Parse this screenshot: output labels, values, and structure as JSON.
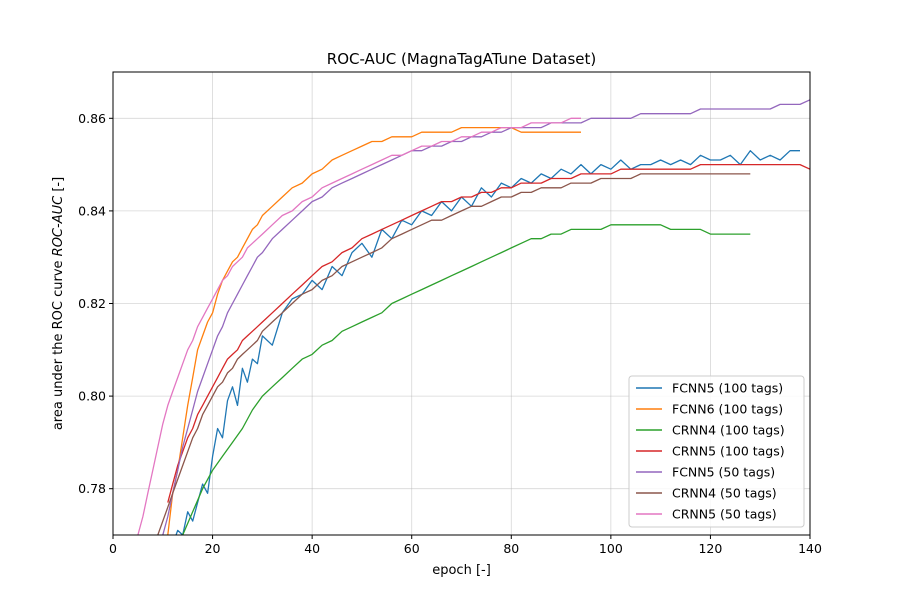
{
  "chart_data": {
    "type": "line",
    "title": "ROC-AUC (MagnaTagATune Dataset)",
    "xlabel": "epoch [-]",
    "ylabel_prefix": "area under the ROC curve ",
    "ylabel_italic": "ROC-AUC",
    "ylabel_suffix": " [-]",
    "xlim": [
      0,
      140
    ],
    "ylim": [
      0.77,
      0.87
    ],
    "xticks": [
      0,
      20,
      40,
      60,
      80,
      100,
      120,
      140
    ],
    "xtick_labels": [
      "0",
      "20",
      "40",
      "60",
      "80",
      "100",
      "120",
      "140"
    ],
    "yticks": [
      0.78,
      0.8,
      0.82,
      0.84,
      0.86
    ],
    "ytick_labels": [
      "0.78",
      "0.80",
      "0.82",
      "0.84",
      "0.86"
    ],
    "grid": true,
    "legend_position": "lower-right",
    "series": [
      {
        "name": "FCNN5 (100 tags)",
        "color": "#1f77b4",
        "x": [
          11,
          12,
          13,
          14,
          15,
          16,
          17,
          18,
          19,
          20,
          21,
          22,
          23,
          24,
          25,
          26,
          27,
          28,
          29,
          30,
          32,
          34,
          36,
          38,
          40,
          42,
          44,
          46,
          48,
          50,
          52,
          54,
          56,
          58,
          60,
          62,
          64,
          66,
          68,
          70,
          72,
          74,
          76,
          78,
          80,
          82,
          84,
          86,
          88,
          90,
          92,
          94,
          96,
          98,
          100,
          102,
          104,
          106,
          108,
          110,
          112,
          114,
          116,
          118,
          120,
          122,
          124,
          126,
          128,
          130,
          132,
          134,
          136,
          138
        ],
        "values": [
          0.766,
          0.768,
          0.771,
          0.77,
          0.775,
          0.773,
          0.777,
          0.781,
          0.779,
          0.787,
          0.793,
          0.791,
          0.799,
          0.802,
          0.798,
          0.806,
          0.803,
          0.808,
          0.807,
          0.813,
          0.811,
          0.818,
          0.821,
          0.822,
          0.825,
          0.823,
          0.828,
          0.826,
          0.831,
          0.833,
          0.83,
          0.836,
          0.834,
          0.838,
          0.837,
          0.84,
          0.839,
          0.842,
          0.84,
          0.843,
          0.841,
          0.845,
          0.843,
          0.846,
          0.845,
          0.847,
          0.846,
          0.848,
          0.847,
          0.849,
          0.848,
          0.85,
          0.848,
          0.85,
          0.849,
          0.851,
          0.849,
          0.85,
          0.85,
          0.851,
          0.85,
          0.851,
          0.85,
          0.852,
          0.851,
          0.851,
          0.852,
          0.85,
          0.853,
          0.851,
          0.852,
          0.851,
          0.853,
          0.853
        ]
      },
      {
        "name": "FCNN6 (100 tags)",
        "color": "#ff7f0e",
        "x": [
          11,
          12,
          13,
          14,
          15,
          16,
          17,
          18,
          19,
          20,
          21,
          22,
          23,
          24,
          25,
          26,
          27,
          28,
          29,
          30,
          32,
          34,
          36,
          38,
          40,
          42,
          44,
          46,
          48,
          50,
          52,
          54,
          56,
          58,
          60,
          62,
          64,
          66,
          68,
          70,
          72,
          74,
          76,
          78,
          80,
          82,
          84,
          86,
          88,
          90,
          92,
          94
        ],
        "values": [
          0.77,
          0.779,
          0.784,
          0.791,
          0.798,
          0.804,
          0.81,
          0.813,
          0.816,
          0.818,
          0.822,
          0.825,
          0.827,
          0.829,
          0.83,
          0.832,
          0.834,
          0.836,
          0.837,
          0.839,
          0.841,
          0.843,
          0.845,
          0.846,
          0.848,
          0.849,
          0.851,
          0.852,
          0.853,
          0.854,
          0.855,
          0.855,
          0.856,
          0.856,
          0.856,
          0.857,
          0.857,
          0.857,
          0.857,
          0.858,
          0.858,
          0.858,
          0.858,
          0.858,
          0.858,
          0.857,
          0.857,
          0.857,
          0.857,
          0.857,
          0.857,
          0.857
        ]
      },
      {
        "name": "CRNN4 (100 tags)",
        "color": "#2ca02c",
        "x": [
          14,
          16,
          18,
          20,
          22,
          24,
          26,
          28,
          30,
          32,
          34,
          36,
          38,
          40,
          42,
          44,
          46,
          48,
          50,
          52,
          54,
          56,
          58,
          60,
          62,
          64,
          66,
          68,
          70,
          72,
          74,
          76,
          78,
          80,
          82,
          84,
          86,
          88,
          90,
          92,
          94,
          96,
          98,
          100,
          102,
          104,
          106,
          108,
          110,
          112,
          114,
          116,
          118,
          120,
          122,
          124,
          126,
          128
        ],
        "values": [
          0.77,
          0.775,
          0.78,
          0.784,
          0.787,
          0.79,
          0.793,
          0.797,
          0.8,
          0.802,
          0.804,
          0.806,
          0.808,
          0.809,
          0.811,
          0.812,
          0.814,
          0.815,
          0.816,
          0.817,
          0.818,
          0.82,
          0.821,
          0.822,
          0.823,
          0.824,
          0.825,
          0.826,
          0.827,
          0.828,
          0.829,
          0.83,
          0.831,
          0.832,
          0.833,
          0.834,
          0.834,
          0.835,
          0.835,
          0.836,
          0.836,
          0.836,
          0.836,
          0.837,
          0.837,
          0.837,
          0.837,
          0.837,
          0.837,
          0.836,
          0.836,
          0.836,
          0.836,
          0.835,
          0.835,
          0.835,
          0.835,
          0.835
        ]
      },
      {
        "name": "CRNN5 (100 tags)",
        "color": "#d62728",
        "x": [
          11,
          12,
          13,
          14,
          15,
          16,
          17,
          18,
          19,
          20,
          21,
          22,
          23,
          24,
          25,
          26,
          27,
          28,
          29,
          30,
          32,
          34,
          36,
          38,
          40,
          42,
          44,
          46,
          48,
          50,
          52,
          54,
          56,
          58,
          60,
          62,
          64,
          66,
          68,
          70,
          72,
          74,
          76,
          78,
          80,
          82,
          84,
          86,
          88,
          90,
          92,
          94,
          96,
          98,
          100,
          102,
          104,
          106,
          108,
          110,
          112,
          114,
          116,
          118,
          120,
          122,
          124,
          126,
          128,
          130,
          132,
          134,
          136,
          138,
          140
        ],
        "values": [
          0.777,
          0.781,
          0.785,
          0.788,
          0.791,
          0.793,
          0.796,
          0.798,
          0.8,
          0.802,
          0.804,
          0.806,
          0.808,
          0.809,
          0.81,
          0.812,
          0.813,
          0.814,
          0.815,
          0.816,
          0.818,
          0.82,
          0.822,
          0.824,
          0.826,
          0.828,
          0.829,
          0.831,
          0.832,
          0.834,
          0.835,
          0.836,
          0.837,
          0.838,
          0.839,
          0.84,
          0.841,
          0.842,
          0.842,
          0.843,
          0.843,
          0.844,
          0.844,
          0.845,
          0.845,
          0.846,
          0.846,
          0.846,
          0.847,
          0.847,
          0.847,
          0.848,
          0.848,
          0.848,
          0.848,
          0.849,
          0.849,
          0.849,
          0.849,
          0.849,
          0.849,
          0.849,
          0.849,
          0.85,
          0.85,
          0.85,
          0.85,
          0.85,
          0.85,
          0.85,
          0.85,
          0.85,
          0.85,
          0.85,
          0.849
        ]
      },
      {
        "name": "FCNN5 (50 tags)",
        "color": "#9467bd",
        "x": [
          10,
          11,
          12,
          13,
          14,
          15,
          16,
          17,
          18,
          19,
          20,
          21,
          22,
          23,
          24,
          25,
          26,
          27,
          28,
          29,
          30,
          32,
          34,
          36,
          38,
          40,
          42,
          44,
          46,
          48,
          50,
          52,
          54,
          56,
          58,
          60,
          62,
          64,
          66,
          68,
          70,
          72,
          74,
          76,
          78,
          80,
          82,
          84,
          86,
          88,
          90,
          92,
          94,
          96,
          98,
          100,
          102,
          104,
          106,
          108,
          110,
          112,
          114,
          116,
          118,
          120,
          122,
          124,
          126,
          128,
          130,
          132,
          134,
          136,
          138,
          140
        ],
        "values": [
          0.77,
          0.774,
          0.779,
          0.784,
          0.789,
          0.793,
          0.797,
          0.801,
          0.804,
          0.807,
          0.81,
          0.813,
          0.815,
          0.818,
          0.82,
          0.822,
          0.824,
          0.826,
          0.828,
          0.83,
          0.831,
          0.834,
          0.836,
          0.838,
          0.84,
          0.842,
          0.843,
          0.845,
          0.846,
          0.847,
          0.848,
          0.849,
          0.85,
          0.851,
          0.852,
          0.853,
          0.853,
          0.854,
          0.854,
          0.855,
          0.855,
          0.856,
          0.856,
          0.857,
          0.857,
          0.858,
          0.858,
          0.858,
          0.858,
          0.859,
          0.859,
          0.859,
          0.859,
          0.86,
          0.86,
          0.86,
          0.86,
          0.86,
          0.861,
          0.861,
          0.861,
          0.861,
          0.861,
          0.861,
          0.862,
          0.862,
          0.862,
          0.862,
          0.862,
          0.862,
          0.862,
          0.862,
          0.863,
          0.863,
          0.863,
          0.864
        ]
      },
      {
        "name": "CRNN4 (50 tags)",
        "color": "#8c564b",
        "x": [
          9,
          10,
          11,
          12,
          13,
          14,
          15,
          16,
          17,
          18,
          19,
          20,
          21,
          22,
          23,
          24,
          25,
          26,
          27,
          28,
          29,
          30,
          32,
          34,
          36,
          38,
          40,
          42,
          44,
          46,
          48,
          50,
          52,
          54,
          56,
          58,
          60,
          62,
          64,
          66,
          68,
          70,
          72,
          74,
          76,
          78,
          80,
          82,
          84,
          86,
          88,
          90,
          92,
          94,
          96,
          98,
          100,
          102,
          104,
          106,
          108,
          110,
          112,
          114,
          116,
          118,
          120,
          122,
          124,
          126,
          128
        ],
        "values": [
          0.77,
          0.773,
          0.776,
          0.779,
          0.782,
          0.785,
          0.788,
          0.791,
          0.793,
          0.796,
          0.798,
          0.8,
          0.802,
          0.803,
          0.805,
          0.806,
          0.808,
          0.809,
          0.81,
          0.811,
          0.812,
          0.814,
          0.816,
          0.818,
          0.82,
          0.822,
          0.823,
          0.825,
          0.826,
          0.828,
          0.829,
          0.83,
          0.831,
          0.832,
          0.834,
          0.835,
          0.836,
          0.837,
          0.838,
          0.838,
          0.839,
          0.84,
          0.841,
          0.841,
          0.842,
          0.843,
          0.843,
          0.844,
          0.844,
          0.845,
          0.845,
          0.845,
          0.846,
          0.846,
          0.846,
          0.847,
          0.847,
          0.847,
          0.847,
          0.848,
          0.848,
          0.848,
          0.848,
          0.848,
          0.848,
          0.848,
          0.848,
          0.848,
          0.848,
          0.848,
          0.848
        ]
      },
      {
        "name": "CRNN5 (50 tags)",
        "color": "#e377c2",
        "x": [
          5,
          6,
          7,
          8,
          9,
          10,
          11,
          12,
          13,
          14,
          15,
          16,
          17,
          18,
          19,
          20,
          21,
          22,
          23,
          24,
          25,
          26,
          27,
          28,
          29,
          30,
          32,
          34,
          36,
          38,
          40,
          42,
          44,
          46,
          48,
          50,
          52,
          54,
          56,
          58,
          60,
          62,
          64,
          66,
          68,
          70,
          72,
          74,
          76,
          78,
          80,
          82,
          84,
          86,
          88,
          90,
          92,
          94
        ],
        "values": [
          0.77,
          0.774,
          0.779,
          0.784,
          0.789,
          0.794,
          0.798,
          0.801,
          0.804,
          0.807,
          0.81,
          0.812,
          0.815,
          0.817,
          0.819,
          0.821,
          0.823,
          0.825,
          0.826,
          0.828,
          0.829,
          0.83,
          0.832,
          0.833,
          0.834,
          0.835,
          0.837,
          0.839,
          0.84,
          0.842,
          0.843,
          0.845,
          0.846,
          0.847,
          0.848,
          0.849,
          0.85,
          0.851,
          0.852,
          0.852,
          0.853,
          0.854,
          0.854,
          0.855,
          0.855,
          0.856,
          0.856,
          0.857,
          0.857,
          0.858,
          0.858,
          0.858,
          0.859,
          0.859,
          0.859,
          0.859,
          0.86,
          0.86
        ]
      }
    ]
  }
}
